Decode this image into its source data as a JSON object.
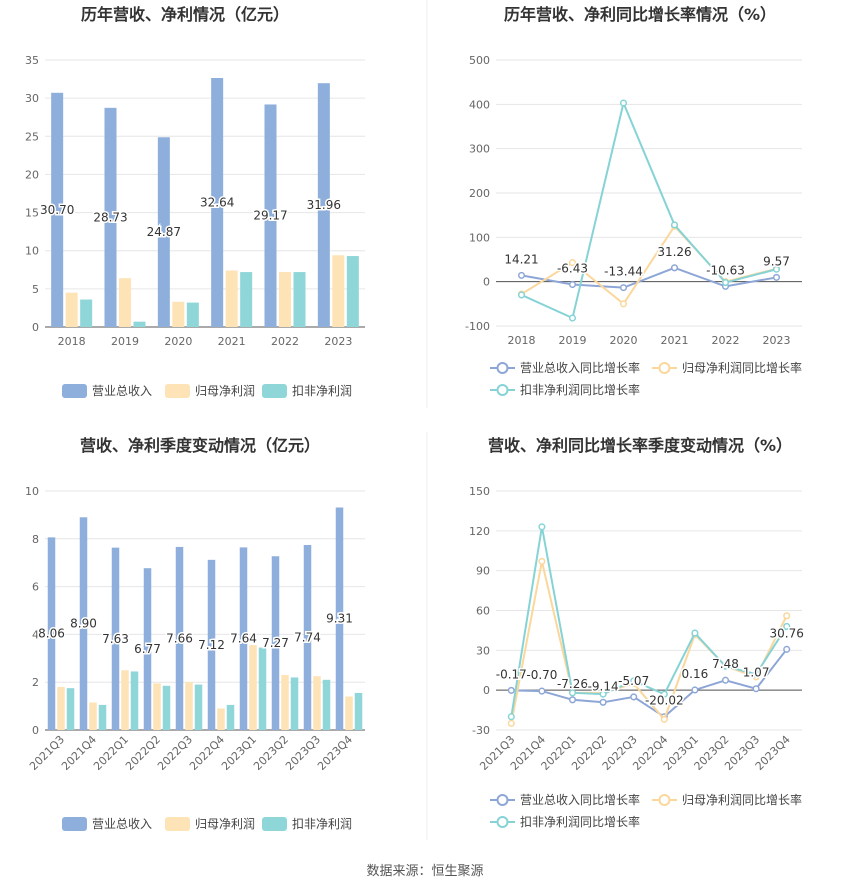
{
  "footer": "数据来源：恒生聚源",
  "colors": {
    "revenue": "#8eaedb",
    "net_profit": "#fde3b5",
    "deducted_profit": "#8fd6d9",
    "revenue_line": "#8da6d6",
    "net_line": "#fbd79b",
    "deducted_line": "#86d3d6"
  },
  "chart_data": [
    {
      "id": "annual-values",
      "type": "bar",
      "title": "历年营收、净利情况（亿元）",
      "categories": [
        "2018",
        "2019",
        "2020",
        "2021",
        "2022",
        "2023"
      ],
      "ylim": [
        0,
        35
      ],
      "yticks": [
        0,
        5,
        10,
        15,
        20,
        25,
        30,
        35
      ],
      "series": [
        {
          "name": "营业总收入",
          "values": [
            30.7,
            28.73,
            24.87,
            32.64,
            29.17,
            31.96
          ],
          "labels": [
            "30.70",
            "28.73",
            "24.87",
            "32.64",
            "29.17",
            "31.96"
          ]
        },
        {
          "name": "归母净利润",
          "values": [
            4.5,
            6.4,
            3.3,
            7.4,
            7.2,
            9.4
          ]
        },
        {
          "name": "扣非净利润",
          "values": [
            3.6,
            0.7,
            3.2,
            7.2,
            7.2,
            9.3
          ]
        }
      ],
      "legend": "bottom"
    },
    {
      "id": "annual-growth",
      "type": "line",
      "title": "历年营收、净利同比增长率情况（%）",
      "categories": [
        "2018",
        "2019",
        "2020",
        "2021",
        "2022",
        "2023"
      ],
      "ylim": [
        -100,
        500
      ],
      "yticks": [
        -100,
        0,
        100,
        200,
        300,
        400,
        500
      ],
      "series": [
        {
          "name": "营业总收入同比增长率",
          "values": [
            14.21,
            -6.43,
            -13.44,
            31.26,
            -10.63,
            9.57
          ],
          "labels": [
            "14.21",
            "-6.43",
            "-13.44",
            "31.26",
            "-10.63",
            "9.57"
          ]
        },
        {
          "name": "归母净利润同比增长率",
          "values": [
            -28,
            43,
            -50,
            125,
            0,
            29
          ]
        },
        {
          "name": "扣非净利润同比增长率",
          "values": [
            -30,
            -82,
            403,
            128,
            -2,
            28
          ]
        }
      ],
      "legend": "bottom"
    },
    {
      "id": "quarterly-values",
      "type": "bar",
      "title": "营收、净利季度变动情况（亿元）",
      "categories": [
        "2021Q3",
        "2021Q4",
        "2022Q1",
        "2022Q2",
        "2022Q3",
        "2022Q4",
        "2023Q1",
        "2023Q2",
        "2023Q3",
        "2023Q4"
      ],
      "ylim": [
        0,
        10
      ],
      "yticks": [
        0,
        2,
        4,
        6,
        8,
        10
      ],
      "series": [
        {
          "name": "营业总收入",
          "values": [
            8.06,
            8.9,
            7.63,
            6.77,
            7.66,
            7.12,
            7.64,
            7.27,
            7.74,
            9.31
          ],
          "labels": [
            "8.06",
            "8.90",
            "7.63",
            "6.77",
            "7.66",
            "7.12",
            "7.64",
            "7.27",
            "7.74",
            "9.31"
          ]
        },
        {
          "name": "归母净利润",
          "values": [
            1.8,
            1.15,
            2.5,
            1.95,
            2.0,
            0.9,
            3.55,
            2.3,
            2.25,
            1.4
          ]
        },
        {
          "name": "扣非净利润",
          "values": [
            1.75,
            1.05,
            2.45,
            1.85,
            1.9,
            1.05,
            3.45,
            2.2,
            2.1,
            1.55
          ]
        }
      ],
      "legend": "bottom"
    },
    {
      "id": "quarterly-growth",
      "type": "line",
      "title": "营收、净利同比增长率季度变动情况（%）",
      "categories": [
        "2021Q3",
        "2021Q4",
        "2022Q1",
        "2022Q2",
        "2022Q3",
        "2022Q4",
        "2023Q1",
        "2023Q2",
        "2023Q3",
        "2023Q4"
      ],
      "ylim": [
        -30,
        150
      ],
      "yticks": [
        -30,
        0,
        30,
        60,
        90,
        120,
        150
      ],
      "series": [
        {
          "name": "营业总收入同比增长率",
          "values": [
            -0.17,
            -0.7,
            -7.26,
            -9.14,
            -5.07,
            -20.02,
            0.16,
            7.48,
            1.07,
            30.76
          ],
          "labels": [
            "-0.17",
            "-0.70",
            "-7.26",
            "-9.14",
            "-5.07",
            "-20.02",
            "0.16",
            "7.48",
            "1.07",
            "30.76"
          ]
        },
        {
          "name": "归母净利润同比增长率",
          "values": [
            -25,
            97,
            -2,
            -2,
            5,
            -22,
            42,
            18,
            10,
            56
          ]
        },
        {
          "name": "扣非净利润同比增长率",
          "values": [
            -20,
            123,
            -2,
            -3,
            7,
            -3,
            43,
            18,
            12,
            48
          ]
        }
      ],
      "legend": "bottom"
    }
  ]
}
